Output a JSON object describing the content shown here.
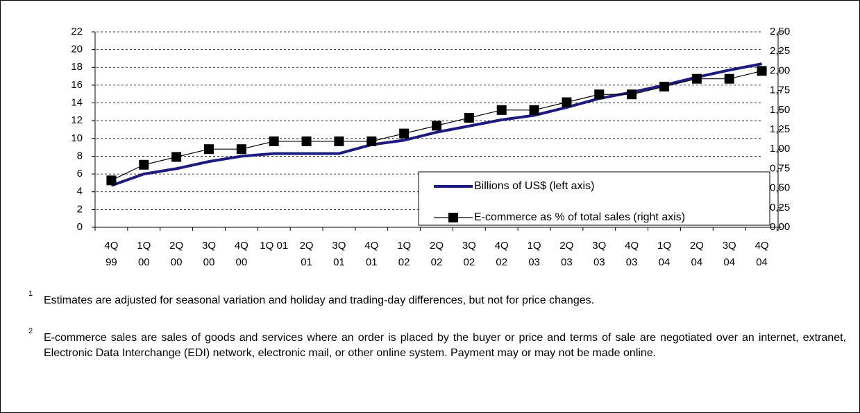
{
  "chart_data": {
    "type": "line",
    "categories": [
      [
        "4Q",
        "99"
      ],
      [
        "1Q",
        "00"
      ],
      [
        "2Q",
        "00"
      ],
      [
        "3Q",
        "00"
      ],
      [
        "4Q",
        "00"
      ],
      [
        "1Q 01"
      ],
      [
        "2Q",
        "01"
      ],
      [
        "3Q",
        "01"
      ],
      [
        "4Q",
        "01"
      ],
      [
        "1Q",
        "02"
      ],
      [
        "2Q",
        "02"
      ],
      [
        "3Q",
        "02"
      ],
      [
        "4Q",
        "02"
      ],
      [
        "1Q",
        "03"
      ],
      [
        "2Q",
        "03"
      ],
      [
        "3Q",
        "03"
      ],
      [
        "4Q",
        "03"
      ],
      [
        "1Q",
        "04"
      ],
      [
        "2Q",
        "04"
      ],
      [
        "3Q",
        "04"
      ],
      [
        "4Q",
        "04"
      ]
    ],
    "series": [
      {
        "name": "Billions of US$ (left axis)",
        "color": "#1c1c80",
        "values": [
          4.7,
          6.0,
          6.6,
          7.4,
          8.0,
          8.3,
          8.3,
          8.3,
          9.3,
          9.8,
          10.7,
          11.4,
          12.1,
          12.6,
          13.5,
          14.5,
          15.2,
          16.0,
          16.9,
          17.7,
          18.4
        ]
      },
      {
        "name": "E-commerce as % of total sales (right axis)",
        "color": "#000000",
        "axis": "y2",
        "marker": "square",
        "values": [
          0.6,
          0.8,
          0.9,
          1.0,
          1.0,
          1.1,
          1.1,
          1.1,
          1.1,
          1.2,
          1.3,
          1.4,
          1.5,
          1.5,
          1.6,
          1.7,
          1.7,
          1.8,
          1.9,
          1.9,
          2.0
        ]
      }
    ],
    "ylim": [
      0,
      22
    ],
    "yticks": [
      0,
      2,
      4,
      6,
      8,
      10,
      12,
      14,
      16,
      18,
      20,
      22
    ],
    "y2lim": [
      0,
      2.5
    ],
    "y2ticks": [
      {
        "value": 0,
        "label": "0,00"
      },
      {
        "value": 0.25,
        "label": "0,25"
      },
      {
        "value": 0.5,
        "label": "0,50"
      },
      {
        "value": 0.75,
        "label": "0,75"
      },
      {
        "value": 1,
        "label": "1,00"
      },
      {
        "value": 1.25,
        "label": "1,25"
      },
      {
        "value": 1.5,
        "label": "1,50"
      },
      {
        "value": 1.75,
        "label": "1,75"
      },
      {
        "value": 2,
        "label": "2,00"
      },
      {
        "value": 2.25,
        "label": "2,25"
      },
      {
        "value": 2.5,
        "label": "2,50"
      }
    ],
    "grid": true,
    "legend": "lower right"
  },
  "notes": [
    {
      "number": "1",
      "text": "Estimates are adjusted for seasonal variation and holiday and trading-day differences, but not for price changes."
    },
    {
      "number": "2",
      "text": "E-commerce sales are sales of goods and services where an order is placed by the buyer or price and terms of sale are negotiated over an internet, extranet, Electronic Data Interchange (EDI) network, electronic mail, or other online system. Payment may or may not be made online."
    }
  ]
}
